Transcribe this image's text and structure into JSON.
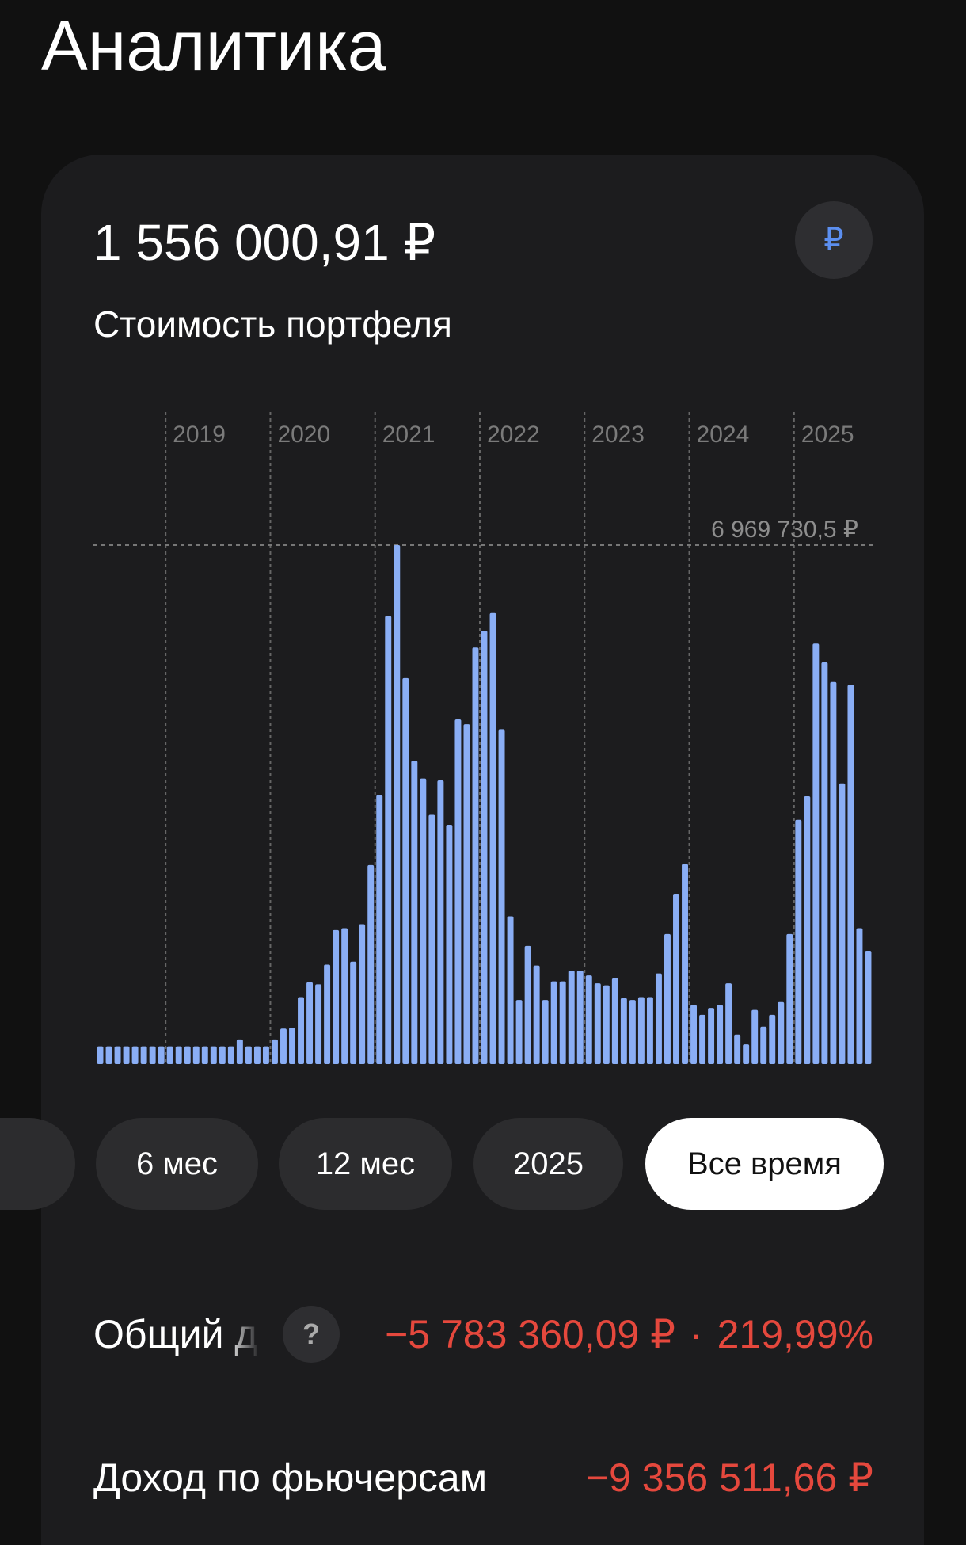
{
  "header": {
    "title": "Аналитика"
  },
  "portfolio": {
    "amount": "1 556 000,91 ₽",
    "label": "Стоимость портфеля",
    "currency_button": "₽"
  },
  "periods": [
    "6 мес",
    "12 мес",
    "2025",
    "Все время"
  ],
  "total_income": {
    "label": "Общий д",
    "help_button": "?",
    "amount": "−5 783 360,09 ₽",
    "separator": "·",
    "percent": "219,99%"
  },
  "futures_income": {
    "label": "Доход по фьючерсам",
    "amount": "−9 356 511,66 ₽"
  },
  "chart_data": {
    "type": "bar",
    "color": "#8aaef5",
    "categories": [
      null,
      null,
      null,
      null,
      null,
      null,
      null,
      null,
      "2019",
      null,
      null,
      null,
      null,
      null,
      null,
      null,
      null,
      null,
      null,
      null,
      "2020",
      null,
      null,
      null,
      null,
      null,
      null,
      null,
      null,
      null,
      null,
      null,
      "2021",
      null,
      null,
      null,
      null,
      null,
      null,
      null,
      null,
      null,
      null,
      null,
      "2022",
      null,
      null,
      null,
      null,
      null,
      null,
      null,
      null,
      null,
      null,
      null,
      "2023",
      null,
      null,
      null,
      null,
      null,
      null,
      null,
      null,
      null,
      null,
      null,
      "2024",
      null,
      null,
      null,
      null,
      null,
      null,
      null,
      null,
      null,
      null,
      null,
      "2025",
      null,
      null,
      null,
      null,
      null,
      null,
      null,
      null
    ],
    "values": [
      238000,
      238000,
      238000,
      238000,
      238000,
      238000,
      238000,
      238000,
      238000,
      238000,
      238000,
      238000,
      238000,
      238000,
      238000,
      238000,
      331000,
      238000,
      238000,
      238000,
      331000,
      476000,
      489000,
      899000,
      1098000,
      1071000,
      1336000,
      1799000,
      1825000,
      1375000,
      1878000,
      2672000,
      3611000,
      6018000,
      6969730.5,
      5184000,
      4073000,
      3835000,
      3346000,
      3809000,
      3214000,
      4629000,
      4563000,
      5594000,
      5819000,
      6057000,
      4497000,
      1984000,
      860000,
      1587000,
      1323000,
      860000,
      1111000,
      1111000,
      1256000,
      1256000,
      1190000,
      1084000,
      1058000,
      1151000,
      886000,
      860000,
      899000,
      899000,
      1217000,
      1746000,
      2288000,
      2685000,
      794000,
      661000,
      754000,
      794000,
      1084000,
      397000,
      265000,
      727000,
      503000,
      661000,
      833000,
      1746000,
      3280000,
      3597000,
      5647000,
      5396000,
      5131000,
      3769000,
      5092000,
      1825000,
      1521000
    ],
    "ylim": [
      0,
      6969730.5
    ],
    "max_line": {
      "value": 6969730.5,
      "label": "6 969 730,5 ₽"
    }
  }
}
